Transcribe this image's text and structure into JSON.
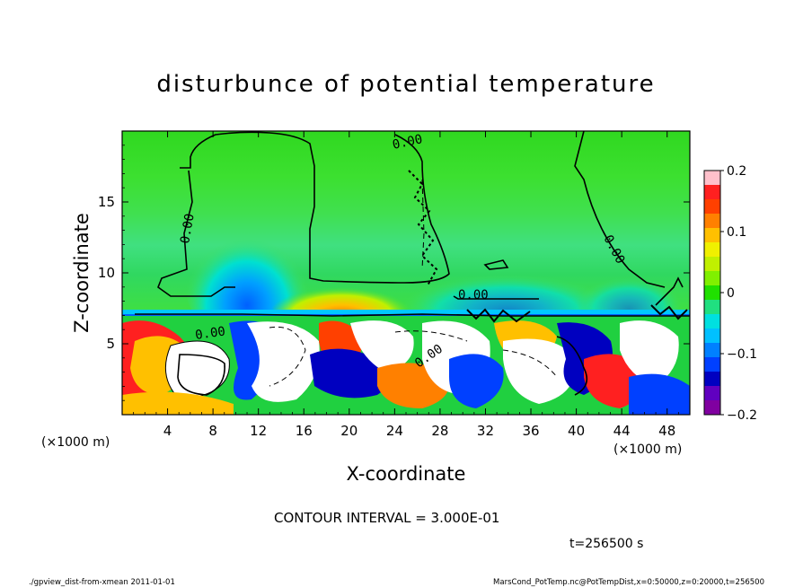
{
  "chart_data": {
    "type": "heatmap",
    "title": "disturbunce of potential temperature",
    "xlabel": "X-coordinate",
    "ylabel": "Z-coordinate",
    "x_unit_left": "(×1000 m)",
    "x_unit_right": "(×1000 m)",
    "xlim": [
      0,
      50
    ],
    "ylim": [
      0,
      20
    ],
    "x_ticks": [
      4,
      8,
      12,
      16,
      20,
      24,
      28,
      32,
      36,
      40,
      44,
      48
    ],
    "y_ticks": [
      5,
      10,
      15
    ],
    "colorbar": {
      "ticks": [
        0.2,
        0.1,
        0,
        -0.1,
        -0.2
      ],
      "tick_labels": [
        "0.2",
        "0.1",
        "0",
        "−0.1",
        "−0.2"
      ],
      "range": [
        -0.2,
        0.2
      ],
      "colors": [
        "#ffc0cb",
        "#ff2020",
        "#ff4000",
        "#ff8000",
        "#ffc000",
        "#f0f000",
        "#c0f000",
        "#80f000",
        "#20e000",
        "#20e080",
        "#00e0e0",
        "#00c0ff",
        "#0080ff",
        "#0040ff",
        "#0000c0",
        "#6000c0",
        "#8000a0"
      ]
    },
    "contour_labels": [
      "0.00",
      "0.00",
      "0.00",
      "0.00",
      "0.00",
      "0.00"
    ],
    "contour_interval_text": "CONTOUR INTERVAL = 3.000E-01",
    "time_text": "t=256500 s",
    "grid": false
  },
  "footer": {
    "left": "./gpview_dist-from-xmean  2011-01-01",
    "right": "MarsCond_PotTemp.nc@PotTempDist,x=0:50000,z=0:20000,t=256500"
  }
}
